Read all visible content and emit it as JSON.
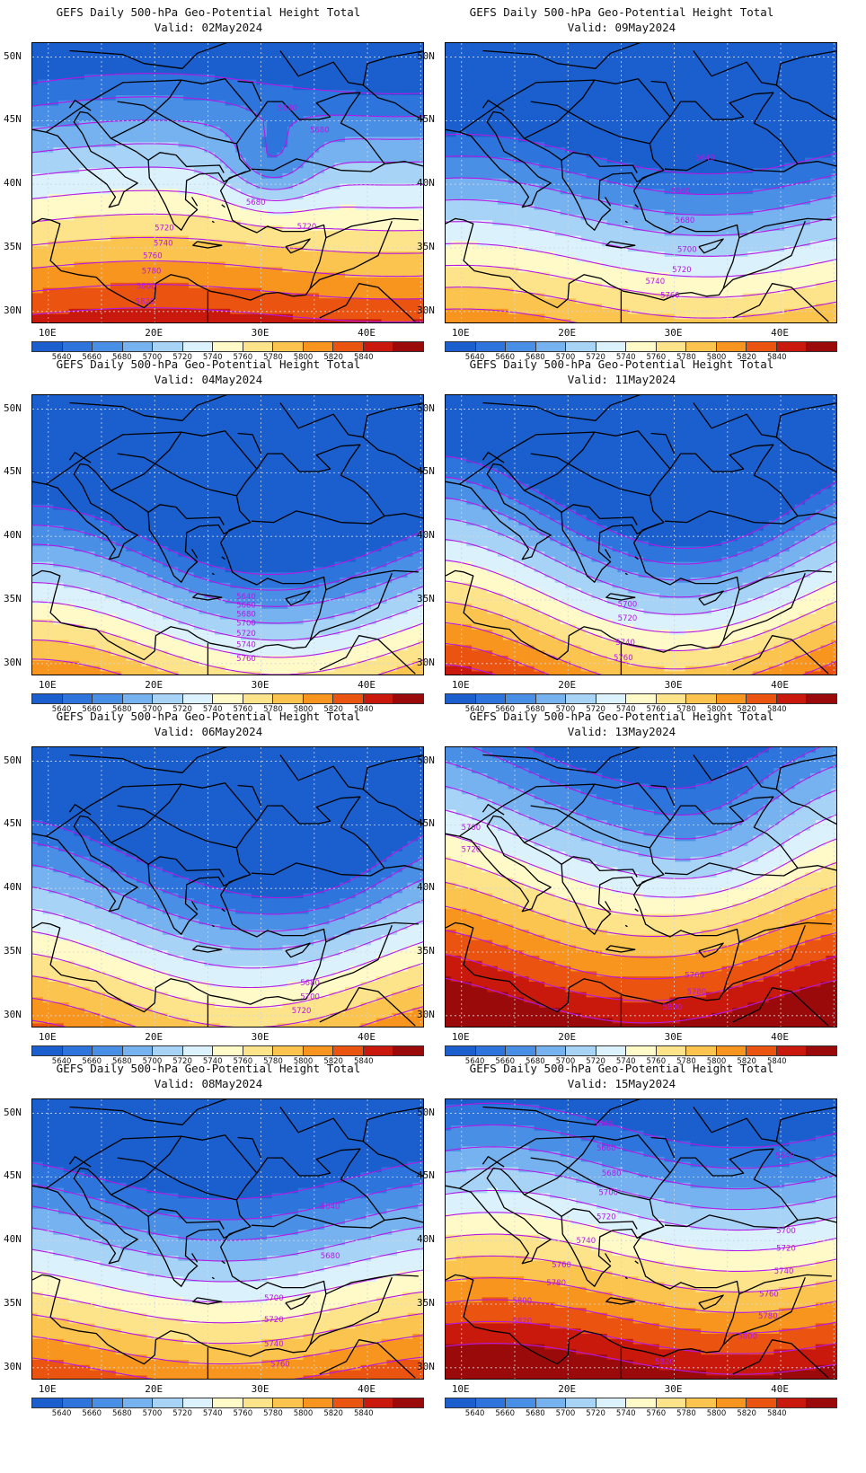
{
  "palette": {
    "5620": "#1b5fce",
    "5640": "#2d74dc",
    "5660": "#4a8fe6",
    "5680": "#75b2ef",
    "5700": "#a7d3f7",
    "5720": "#dbf1fb",
    "5740": "#fffac8",
    "5760": "#fde48b",
    "5780": "#fbc44f",
    "5800": "#f7951e",
    "5820": "#ea5410",
    "5840": "#c9190c",
    "5860": "#9b0a0a",
    "contour": "#b518e6",
    "coast": "#000000"
  },
  "colorbar": {
    "labels": [
      "5640",
      "5660",
      "5680",
      "5700",
      "5720",
      "5740",
      "5760",
      "5780",
      "5800",
      "5820",
      "5840"
    ]
  },
  "axes": {
    "lat_labels": [
      "50N",
      "45N",
      "40N",
      "35N",
      "30N"
    ],
    "lon_labels": [
      "10E",
      "20E",
      "30E",
      "40E"
    ]
  },
  "panels": [
    {
      "title": "GEFS Daily 500-hPa Geo-Potential Height Total",
      "valid": "Valid: 02May2024",
      "contour_labels": [
        {
          "text": "5680",
          "lon": 32.5,
          "lat": 46.0
        },
        {
          "text": "5680",
          "lon": 35.5,
          "lat": 44.3
        },
        {
          "text": "5680",
          "lon": 29.5,
          "lat": 38.6
        },
        {
          "text": "5720",
          "lon": 20.9,
          "lat": 36.6
        },
        {
          "text": "5720",
          "lon": 34.3,
          "lat": 36.7
        },
        {
          "text": "5740",
          "lon": 20.8,
          "lat": 35.4
        },
        {
          "text": "5760",
          "lon": 19.8,
          "lat": 34.4
        },
        {
          "text": "5780",
          "lon": 19.7,
          "lat": 33.2
        },
        {
          "text": "5800",
          "lon": 19.2,
          "lat": 32.0
        },
        {
          "text": "5820",
          "lon": 19.1,
          "lat": 30.8
        }
      ]
    },
    {
      "title": "GEFS Daily 500-hPa Geo-Potential Height Total",
      "valid": "Valid: 09May2024",
      "contour_labels": [
        {
          "text": "5640",
          "lon": 32.9,
          "lat": 42.1
        },
        {
          "text": "5660",
          "lon": 30.6,
          "lat": 39.5
        },
        {
          "text": "5680",
          "lon": 31.0,
          "lat": 37.2
        },
        {
          "text": "5700",
          "lon": 31.2,
          "lat": 34.9
        },
        {
          "text": "5720",
          "lon": 30.7,
          "lat": 33.3
        },
        {
          "text": "5740",
          "lon": 28.2,
          "lat": 32.4
        },
        {
          "text": "5760",
          "lon": 29.6,
          "lat": 31.3
        }
      ]
    },
    {
      "title": "GEFS Daily 500-hPa Geo-Potential Height Total",
      "valid": "Valid: 04May2024",
      "contour_labels": [
        {
          "text": "5640",
          "lon": 28.6,
          "lat": 35.3
        },
        {
          "text": "5660",
          "lon": 28.6,
          "lat": 34.6
        },
        {
          "text": "5680",
          "lon": 28.6,
          "lat": 33.9
        },
        {
          "text": "5700",
          "lon": 28.6,
          "lat": 33.2
        },
        {
          "text": "5720",
          "lon": 28.6,
          "lat": 32.4
        },
        {
          "text": "5740",
          "lon": 28.6,
          "lat": 31.5
        },
        {
          "text": "5760",
          "lon": 28.6,
          "lat": 30.4
        }
      ]
    },
    {
      "title": "GEFS Daily 500-hPa Geo-Potential Height Total",
      "valid": "Valid: 11May2024",
      "contour_labels": [
        {
          "text": "5700",
          "lon": 25.6,
          "lat": 34.7
        },
        {
          "text": "5720",
          "lon": 25.6,
          "lat": 33.6
        },
        {
          "text": "5740",
          "lon": 25.4,
          "lat": 31.7
        },
        {
          "text": "5760",
          "lon": 25.2,
          "lat": 30.5
        }
      ]
    },
    {
      "title": "GEFS Daily 500-hPa Geo-Potential Height Total",
      "valid": "Valid: 06May2024",
      "contour_labels": [
        {
          "text": "5680",
          "lon": 34.6,
          "lat": 32.6
        },
        {
          "text": "5700",
          "lon": 34.6,
          "lat": 31.5
        },
        {
          "text": "5720",
          "lon": 33.8,
          "lat": 30.4
        }
      ]
    },
    {
      "title": "GEFS Daily 500-hPa Geo-Potential Height Total",
      "valid": "Valid: 13May2024",
      "contour_labels": [
        {
          "text": "5700",
          "lon": 10.9,
          "lat": 44.8
        },
        {
          "text": "5720",
          "lon": 10.9,
          "lat": 43.1
        },
        {
          "text": "5760",
          "lon": 31.9,
          "lat": 33.2
        },
        {
          "text": "5780",
          "lon": 32.1,
          "lat": 31.9
        },
        {
          "text": "5800",
          "lon": 29.8,
          "lat": 30.7
        }
      ]
    },
    {
      "title": "GEFS Daily 500-hPa Geo-Potential Height Total",
      "valid": "Valid: 08May2024",
      "contour_labels": [
        {
          "text": "5640",
          "lon": 36.5,
          "lat": 42.7
        },
        {
          "text": "5680",
          "lon": 36.5,
          "lat": 38.8
        },
        {
          "text": "5700",
          "lon": 31.2,
          "lat": 35.5
        },
        {
          "text": "5720",
          "lon": 31.2,
          "lat": 33.8
        },
        {
          "text": "5740",
          "lon": 31.2,
          "lat": 31.9
        },
        {
          "text": "5760",
          "lon": 31.8,
          "lat": 30.3
        }
      ]
    },
    {
      "title": "GEFS Daily 500-hPa Geo-Potential Height Total",
      "valid": "Valid: 15May2024",
      "contour_labels": [
        {
          "text": "5640",
          "lon": 23.3,
          "lat": 49.2
        },
        {
          "text": "5660",
          "lon": 23.6,
          "lat": 47.3
        },
        {
          "text": "5680",
          "lon": 24.1,
          "lat": 45.3
        },
        {
          "text": "5700",
          "lon": 23.8,
          "lat": 43.8
        },
        {
          "text": "5720",
          "lon": 23.6,
          "lat": 41.9
        },
        {
          "text": "5740",
          "lon": 21.7,
          "lat": 40.0
        },
        {
          "text": "5760",
          "lon": 19.4,
          "lat": 38.1
        },
        {
          "text": "5780",
          "lon": 18.9,
          "lat": 36.7
        },
        {
          "text": "5800",
          "lon": 15.7,
          "lat": 35.3
        },
        {
          "text": "5820",
          "lon": 15.7,
          "lat": 33.7
        },
        {
          "text": "5640",
          "lon": 40.4,
          "lat": 46.7
        },
        {
          "text": "5700",
          "lon": 40.5,
          "lat": 40.8
        },
        {
          "text": "5720",
          "lon": 40.5,
          "lat": 39.4
        },
        {
          "text": "5740",
          "lon": 40.3,
          "lat": 37.6
        },
        {
          "text": "5760",
          "lon": 38.9,
          "lat": 35.8
        },
        {
          "text": "5780",
          "lon": 38.8,
          "lat": 34.1
        },
        {
          "text": "5800",
          "lon": 36.9,
          "lat": 32.5
        },
        {
          "text": "5820",
          "lon": 29.1,
          "lat": 30.5
        }
      ]
    }
  ]
}
